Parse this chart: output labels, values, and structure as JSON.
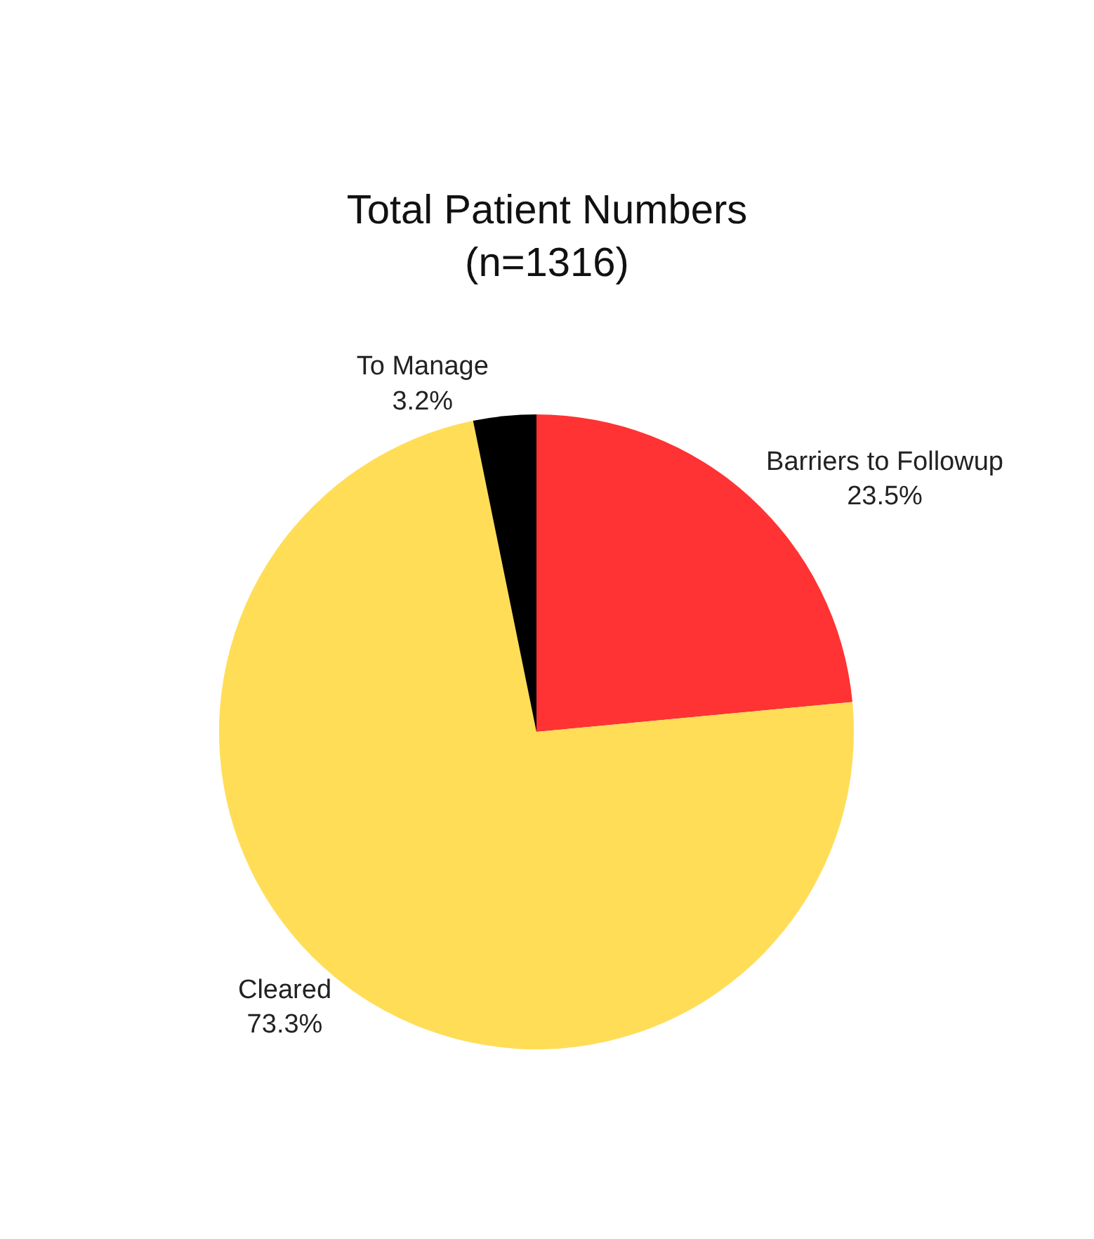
{
  "chart_data": {
    "type": "pie",
    "title": "Total Patient Numbers\n(n=1316)",
    "categories": [
      "Barriers to Followup",
      "Cleared",
      "To Manage"
    ],
    "values": [
      23.5,
      73.3,
      3.2
    ],
    "value_labels": [
      "23.5%",
      "73.3%",
      "3.2%"
    ],
    "colors": [
      "#ff3333",
      "#ffdd57",
      "#000000"
    ],
    "legend": false
  }
}
